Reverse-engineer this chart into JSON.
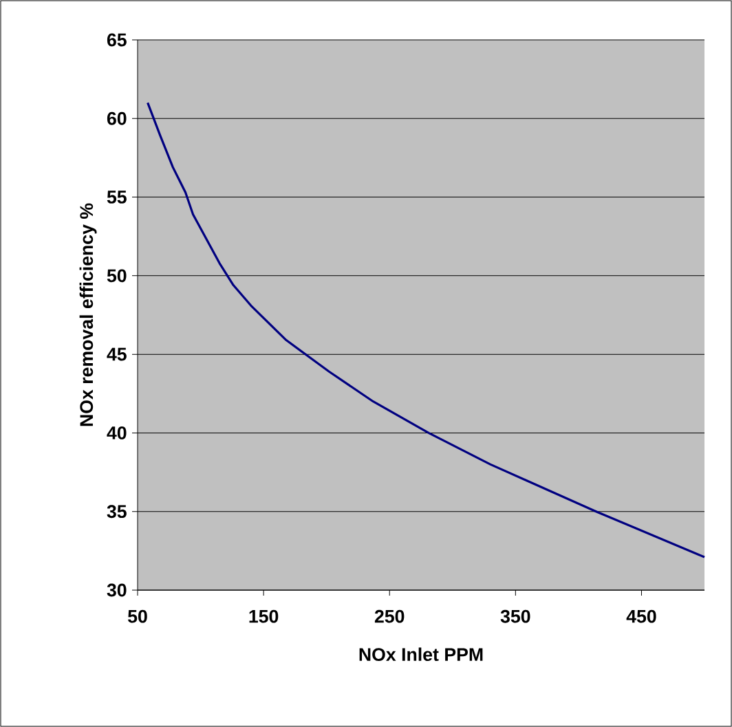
{
  "chart_data": {
    "type": "line",
    "xlabel": "NOx Inlet PPM",
    "ylabel": "NOx removal efficiency %",
    "x": [
      58,
      68,
      78,
      88,
      94,
      115,
      126,
      140,
      168,
      202,
      237,
      281,
      330,
      358,
      414,
      500
    ],
    "values": [
      61,
      58.9,
      56.9,
      55.3,
      53.9,
      50.8,
      49.4,
      48.1,
      45.9,
      43.9,
      42.0,
      40.0,
      38.0,
      37.0,
      35.0,
      32.1
    ],
    "color": "#000080",
    "xlim": [
      50,
      500
    ],
    "ylim": [
      30,
      65
    ],
    "xticks": [
      50,
      150,
      250,
      350,
      450
    ],
    "yticks": [
      30,
      35,
      40,
      45,
      50,
      55,
      60,
      65
    ],
    "grid": "y"
  }
}
